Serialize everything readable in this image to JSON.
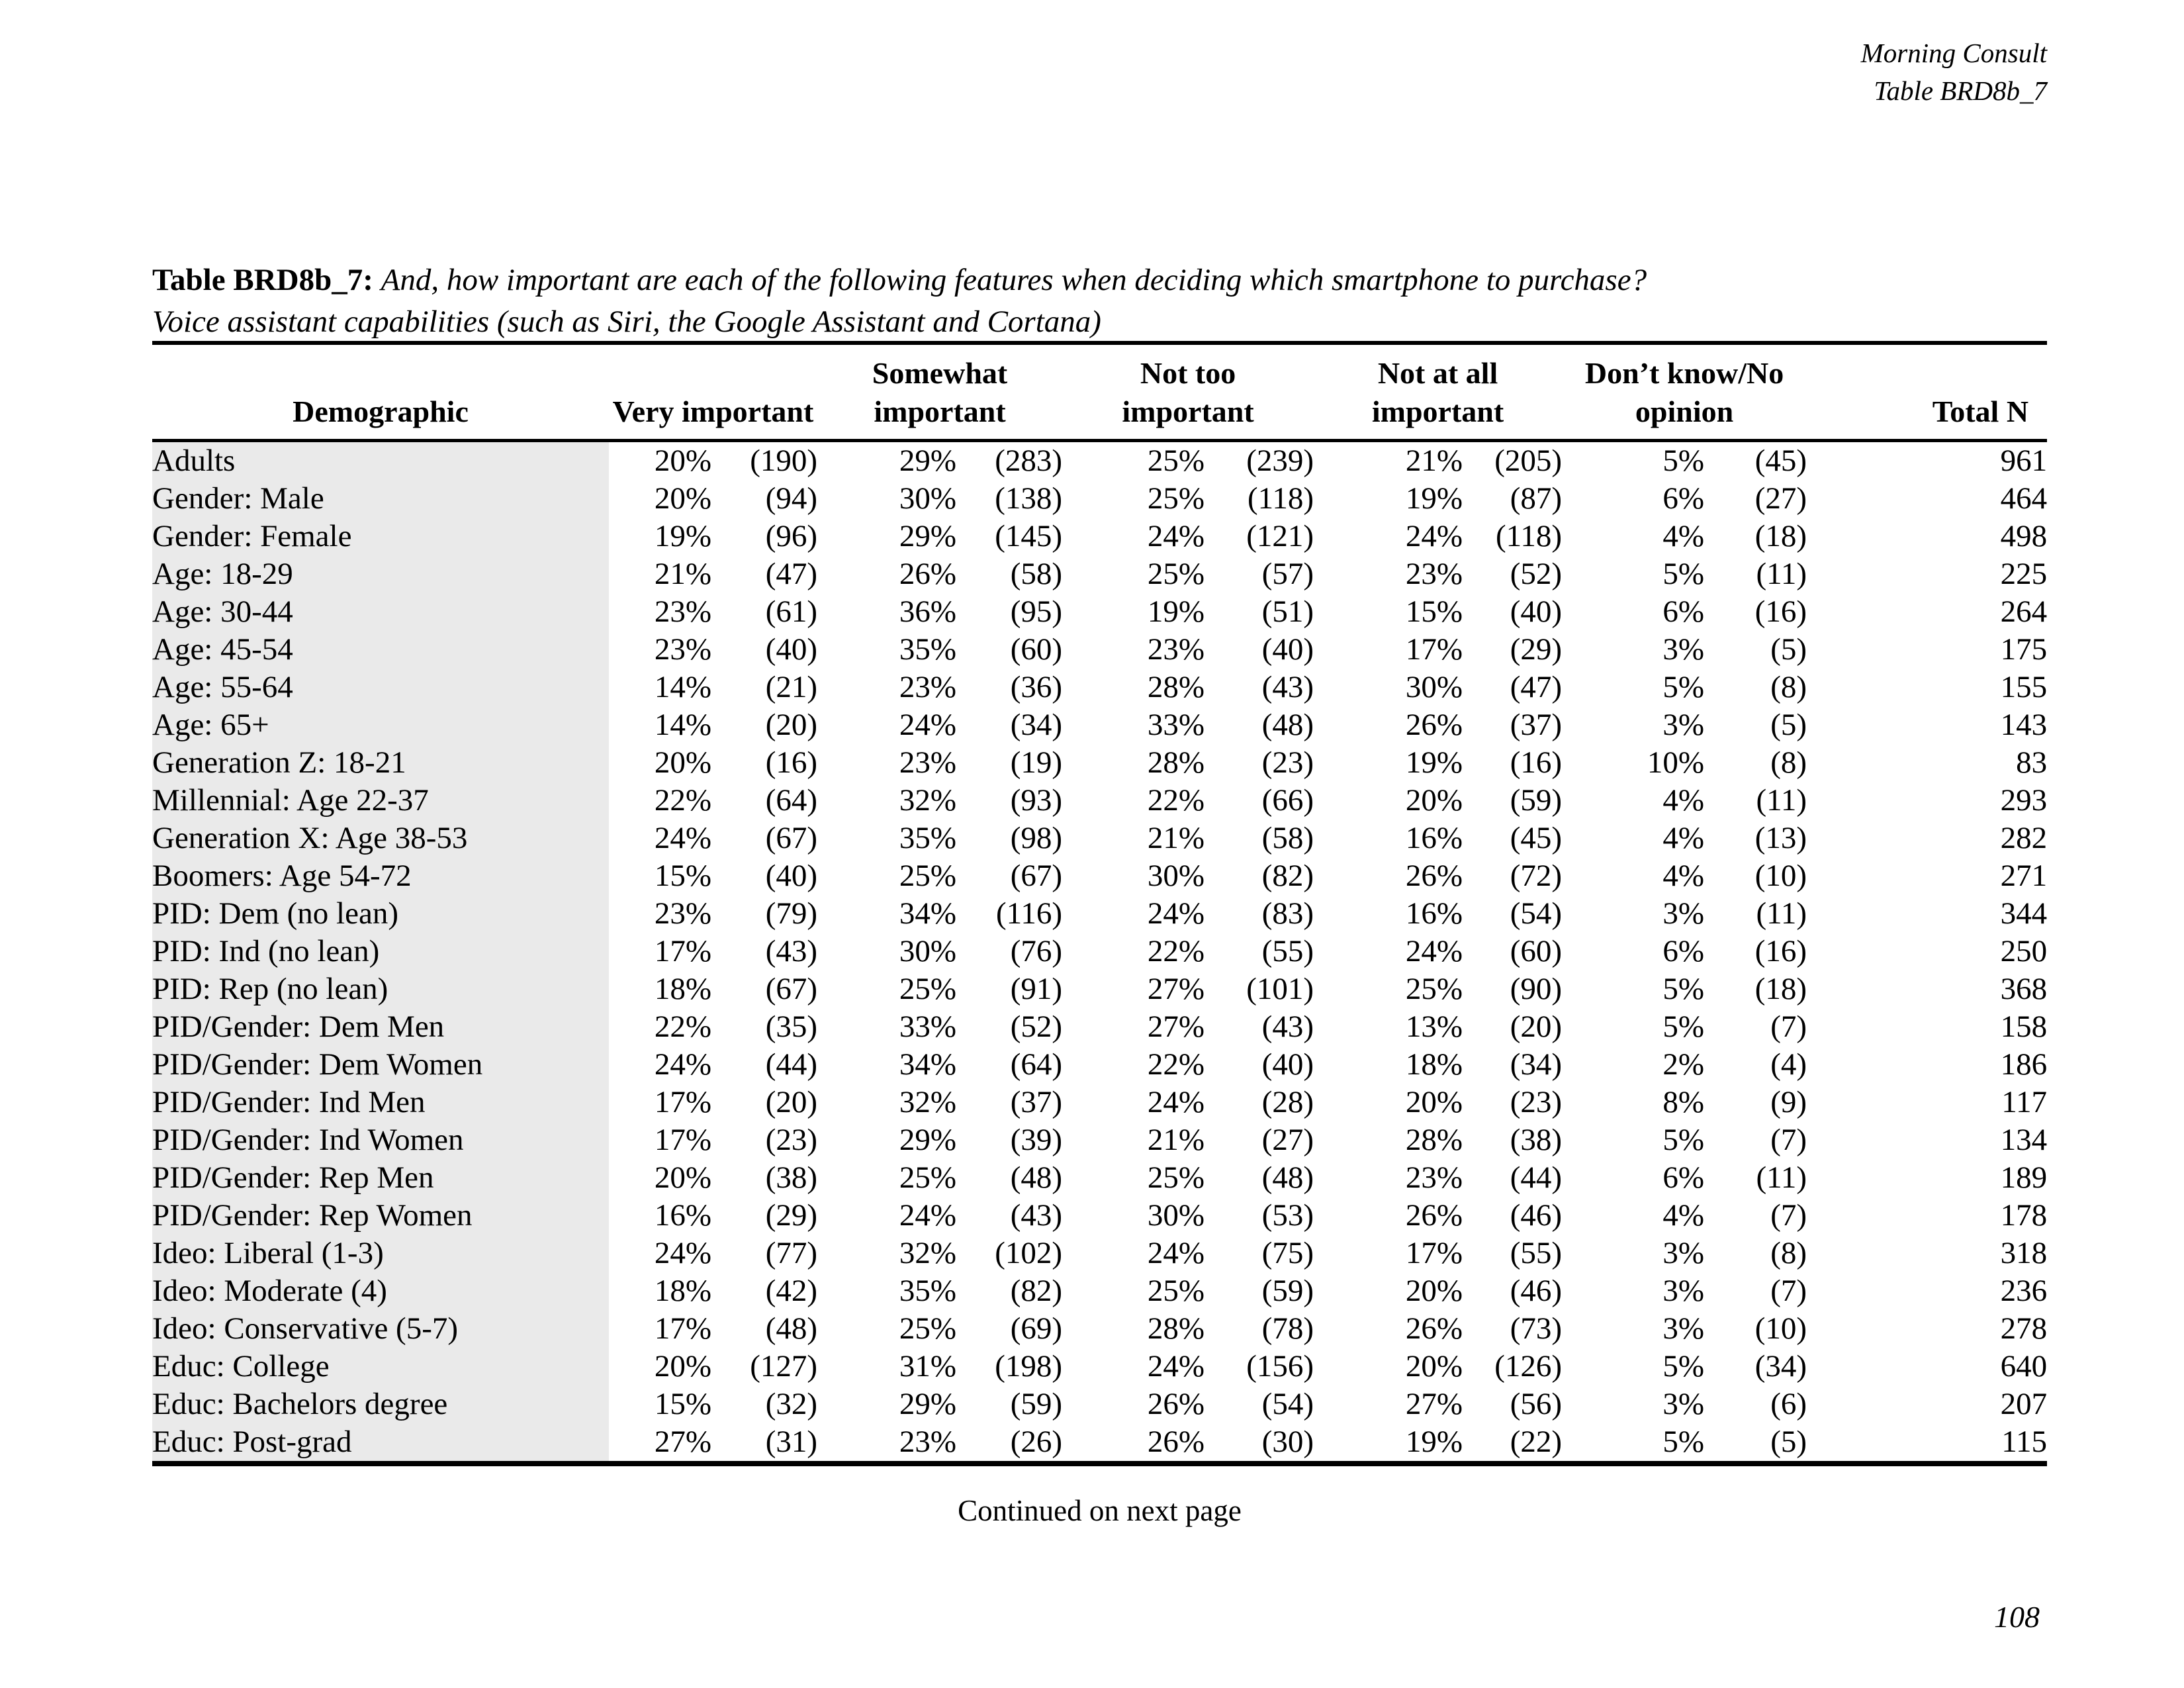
{
  "page": {
    "header_line1": "Morning Consult",
    "header_line2": "Table BRD8b_7",
    "title_label": "Table BRD8b_7:",
    "title_question": "And, how important are each of the following features when deciding which smartphone to purchase?",
    "title_subtitle": "Voice assistant capabilities (such as Siri, the Google Assistant and Cortana)",
    "continued": "Continued on next page",
    "page_number": "108"
  },
  "table": {
    "header": {
      "demographic": "Demographic",
      "very_important": "Very important",
      "somewhat": {
        "line1": "Somewhat",
        "line2": "important"
      },
      "not_too": {
        "line1": "Not too",
        "line2": "important"
      },
      "not_at_all": {
        "line1": "Not at all",
        "line2": "important"
      },
      "dont_know": {
        "line1": "Don’t know/No",
        "line2": "opinion"
      },
      "total_n": "Total N"
    },
    "rows": [
      {
        "label": "Adults",
        "cells": [
          "20%",
          "(190)",
          "29%",
          "(283)",
          "25%",
          "(239)",
          "21%",
          "(205)",
          "5%",
          "(45)"
        ],
        "total": "961"
      },
      {
        "label": "Gender: Male",
        "cells": [
          "20%",
          "(94)",
          "30%",
          "(138)",
          "25%",
          "(118)",
          "19%",
          "(87)",
          "6%",
          "(27)"
        ],
        "total": "464"
      },
      {
        "label": "Gender: Female",
        "cells": [
          "19%",
          "(96)",
          "29%",
          "(145)",
          "24%",
          "(121)",
          "24%",
          "(118)",
          "4%",
          "(18)"
        ],
        "total": "498"
      },
      {
        "label": "Age: 18-29",
        "cells": [
          "21%",
          "(47)",
          "26%",
          "(58)",
          "25%",
          "(57)",
          "23%",
          "(52)",
          "5%",
          "(11)"
        ],
        "total": "225"
      },
      {
        "label": "Age: 30-44",
        "cells": [
          "23%",
          "(61)",
          "36%",
          "(95)",
          "19%",
          "(51)",
          "15%",
          "(40)",
          "6%",
          "(16)"
        ],
        "total": "264"
      },
      {
        "label": "Age: 45-54",
        "cells": [
          "23%",
          "(40)",
          "35%",
          "(60)",
          "23%",
          "(40)",
          "17%",
          "(29)",
          "3%",
          "(5)"
        ],
        "total": "175"
      },
      {
        "label": "Age: 55-64",
        "cells": [
          "14%",
          "(21)",
          "23%",
          "(36)",
          "28%",
          "(43)",
          "30%",
          "(47)",
          "5%",
          "(8)"
        ],
        "total": "155"
      },
      {
        "label": "Age: 65+",
        "cells": [
          "14%",
          "(20)",
          "24%",
          "(34)",
          "33%",
          "(48)",
          "26%",
          "(37)",
          "3%",
          "(5)"
        ],
        "total": "143"
      },
      {
        "label": "Generation Z: 18-21",
        "cells": [
          "20%",
          "(16)",
          "23%",
          "(19)",
          "28%",
          "(23)",
          "19%",
          "(16)",
          "10%",
          "(8)"
        ],
        "total": "83"
      },
      {
        "label": "Millennial: Age 22-37",
        "cells": [
          "22%",
          "(64)",
          "32%",
          "(93)",
          "22%",
          "(66)",
          "20%",
          "(59)",
          "4%",
          "(11)"
        ],
        "total": "293"
      },
      {
        "label": "Generation X: Age 38-53",
        "cells": [
          "24%",
          "(67)",
          "35%",
          "(98)",
          "21%",
          "(58)",
          "16%",
          "(45)",
          "4%",
          "(13)"
        ],
        "total": "282"
      },
      {
        "label": "Boomers: Age 54-72",
        "cells": [
          "15%",
          "(40)",
          "25%",
          "(67)",
          "30%",
          "(82)",
          "26%",
          "(72)",
          "4%",
          "(10)"
        ],
        "total": "271"
      },
      {
        "label": "PID: Dem (no lean)",
        "cells": [
          "23%",
          "(79)",
          "34%",
          "(116)",
          "24%",
          "(83)",
          "16%",
          "(54)",
          "3%",
          "(11)"
        ],
        "total": "344"
      },
      {
        "label": "PID: Ind (no lean)",
        "cells": [
          "17%",
          "(43)",
          "30%",
          "(76)",
          "22%",
          "(55)",
          "24%",
          "(60)",
          "6%",
          "(16)"
        ],
        "total": "250"
      },
      {
        "label": "PID: Rep (no lean)",
        "cells": [
          "18%",
          "(67)",
          "25%",
          "(91)",
          "27%",
          "(101)",
          "25%",
          "(90)",
          "5%",
          "(18)"
        ],
        "total": "368"
      },
      {
        "label": "PID/Gender: Dem Men",
        "cells": [
          "22%",
          "(35)",
          "33%",
          "(52)",
          "27%",
          "(43)",
          "13%",
          "(20)",
          "5%",
          "(7)"
        ],
        "total": "158"
      },
      {
        "label": "PID/Gender: Dem Women",
        "cells": [
          "24%",
          "(44)",
          "34%",
          "(64)",
          "22%",
          "(40)",
          "18%",
          "(34)",
          "2%",
          "(4)"
        ],
        "total": "186"
      },
      {
        "label": "PID/Gender: Ind Men",
        "cells": [
          "17%",
          "(20)",
          "32%",
          "(37)",
          "24%",
          "(28)",
          "20%",
          "(23)",
          "8%",
          "(9)"
        ],
        "total": "117"
      },
      {
        "label": "PID/Gender: Ind Women",
        "cells": [
          "17%",
          "(23)",
          "29%",
          "(39)",
          "21%",
          "(27)",
          "28%",
          "(38)",
          "5%",
          "(7)"
        ],
        "total": "134"
      },
      {
        "label": "PID/Gender: Rep Men",
        "cells": [
          "20%",
          "(38)",
          "25%",
          "(48)",
          "25%",
          "(48)",
          "23%",
          "(44)",
          "6%",
          "(11)"
        ],
        "total": "189"
      },
      {
        "label": "PID/Gender: Rep Women",
        "cells": [
          "16%",
          "(29)",
          "24%",
          "(43)",
          "30%",
          "(53)",
          "26%",
          "(46)",
          "4%",
          "(7)"
        ],
        "total": "178"
      },
      {
        "label": "Ideo: Liberal (1-3)",
        "cells": [
          "24%",
          "(77)",
          "32%",
          "(102)",
          "24%",
          "(75)",
          "17%",
          "(55)",
          "3%",
          "(8)"
        ],
        "total": "318"
      },
      {
        "label": "Ideo: Moderate (4)",
        "cells": [
          "18%",
          "(42)",
          "35%",
          "(82)",
          "25%",
          "(59)",
          "20%",
          "(46)",
          "3%",
          "(7)"
        ],
        "total": "236"
      },
      {
        "label": "Ideo: Conservative (5-7)",
        "cells": [
          "17%",
          "(48)",
          "25%",
          "(69)",
          "28%",
          "(78)",
          "26%",
          "(73)",
          "3%",
          "(10)"
        ],
        "total": "278"
      },
      {
        "label": "Educ:  College",
        "cells": [
          "20%",
          "(127)",
          "31%",
          "(198)",
          "24%",
          "(156)",
          "20%",
          "(126)",
          "5%",
          "(34)"
        ],
        "total": "640"
      },
      {
        "label": "Educ: Bachelors degree",
        "cells": [
          "15%",
          "(32)",
          "29%",
          "(59)",
          "26%",
          "(54)",
          "27%",
          "(56)",
          "3%",
          "(6)"
        ],
        "total": "207"
      },
      {
        "label": "Educ: Post-grad",
        "cells": [
          "27%",
          "(31)",
          "23%",
          "(26)",
          "26%",
          "(30)",
          "19%",
          "(22)",
          "5%",
          "(5)"
        ],
        "total": "115"
      }
    ]
  }
}
